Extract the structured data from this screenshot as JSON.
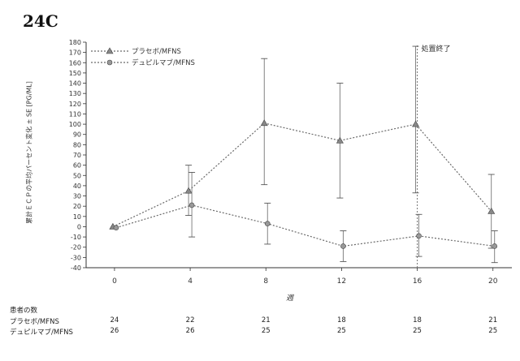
{
  "figure_label": "24C",
  "chart_data": {
    "type": "line",
    "title": "",
    "xlabel": "週",
    "ylabel": "累計ＥＣＰの平均パーセント変化 ± SE [PG/ML]",
    "x": [
      0,
      4,
      8,
      12,
      16,
      20
    ],
    "xlim": [
      -1.5,
      21
    ],
    "ylim": [
      -40,
      180
    ],
    "yticks": [
      -40,
      -30,
      -20,
      -10,
      0,
      10,
      20,
      30,
      40,
      50,
      60,
      70,
      80,
      90,
      100,
      110,
      120,
      130,
      140,
      150,
      160,
      170,
      180
    ],
    "legend_position": "top-left",
    "grid": false,
    "series": [
      {
        "name": "プラセボ/MFNS",
        "marker": "triangle",
        "values": [
          0,
          35,
          101,
          84,
          100,
          15
        ],
        "error_low": [
          0,
          11,
          41,
          28,
          33,
          -21
        ],
        "error_high": [
          0,
          60,
          164,
          140,
          176,
          51
        ]
      },
      {
        "name": "デュピルマブ/MFNS",
        "marker": "circle",
        "values": [
          -1,
          21,
          3,
          -19,
          -9,
          -19
        ],
        "error_low": [
          -1,
          -10,
          -17,
          -34,
          -29,
          -35
        ],
        "error_high": [
          -1,
          53,
          23,
          -4,
          12,
          -4
        ]
      }
    ],
    "annotations": [
      {
        "text": "処置終了",
        "x": 16
      }
    ]
  },
  "patients_table": {
    "title": "患者の数",
    "rows": [
      {
        "label": "プラセボ/MFNS",
        "counts": [
          "24",
          "22",
          "21",
          "18",
          "18",
          "21"
        ]
      },
      {
        "label": "デュピルマブ/MFNS",
        "counts": [
          "26",
          "26",
          "25",
          "25",
          "25",
          "25"
        ]
      }
    ]
  }
}
